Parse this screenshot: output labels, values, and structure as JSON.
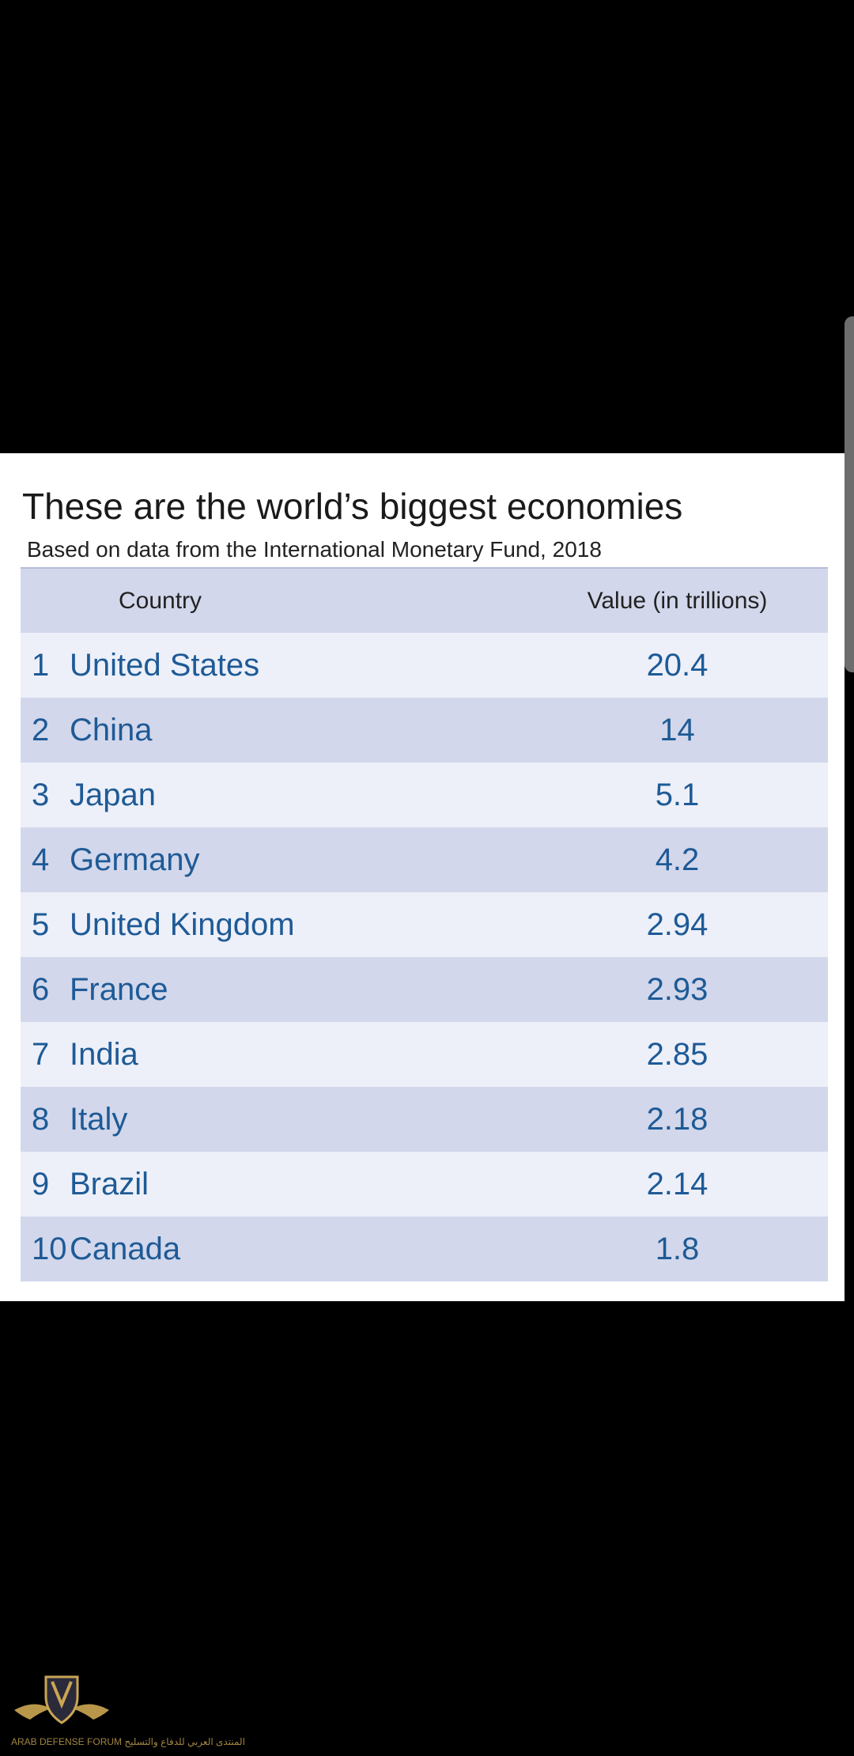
{
  "chart_data": {
    "type": "table",
    "title": "These are the world’s biggest economies",
    "subtitle": "Based on data from the International Monetary Fund, 2018",
    "columns": [
      "Country",
      "Value (in trillions)"
    ],
    "rows": [
      {
        "rank": "1",
        "country": "United States",
        "value": "20.4"
      },
      {
        "rank": "2",
        "country": "China",
        "value": "14"
      },
      {
        "rank": "3",
        "country": "Japan",
        "value": "5.1"
      },
      {
        "rank": "4",
        "country": "Germany",
        "value": "4.2"
      },
      {
        "rank": "5",
        "country": "United Kingdom",
        "value": "2.94"
      },
      {
        "rank": "6",
        "country": "France",
        "value": "2.93"
      },
      {
        "rank": "7",
        "country": "India",
        "value": "2.85"
      },
      {
        "rank": "8",
        "country": "Italy",
        "value": "2.18"
      },
      {
        "rank": "9",
        "country": "Brazil",
        "value": "2.14"
      },
      {
        "rank": "10",
        "country": "Canada",
        "value": "1.8"
      }
    ]
  },
  "colors": {
    "background": "#000000",
    "card": "#ffffff",
    "row_light": "#edf0f9",
    "row_dark": "#d2d7eb",
    "value_text": "#1e5a96"
  },
  "watermark": {
    "icon": "shield-wings-logo",
    "text": "ARAB DEFENSE FORUM المنتدى العربي للدفاع والتسليح"
  }
}
